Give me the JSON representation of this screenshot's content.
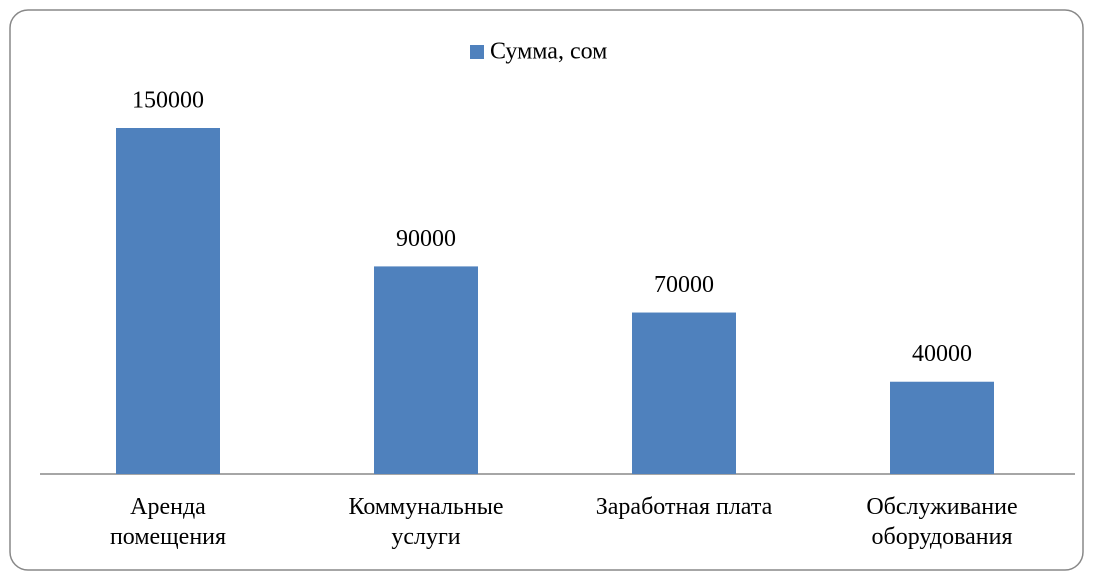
{
  "chart_data": {
    "type": "bar",
    "categories": [
      "Аренда\nпомещения",
      "Коммунальные\nуслуги",
      "Заработная плата",
      "Обслуживание\nоборудования"
    ],
    "series": [
      {
        "name": "Сумма, сом",
        "color": "#4f81bd",
        "values": [
          150000,
          90000,
          70000,
          40000
        ]
      }
    ],
    "legend": "top"
  }
}
